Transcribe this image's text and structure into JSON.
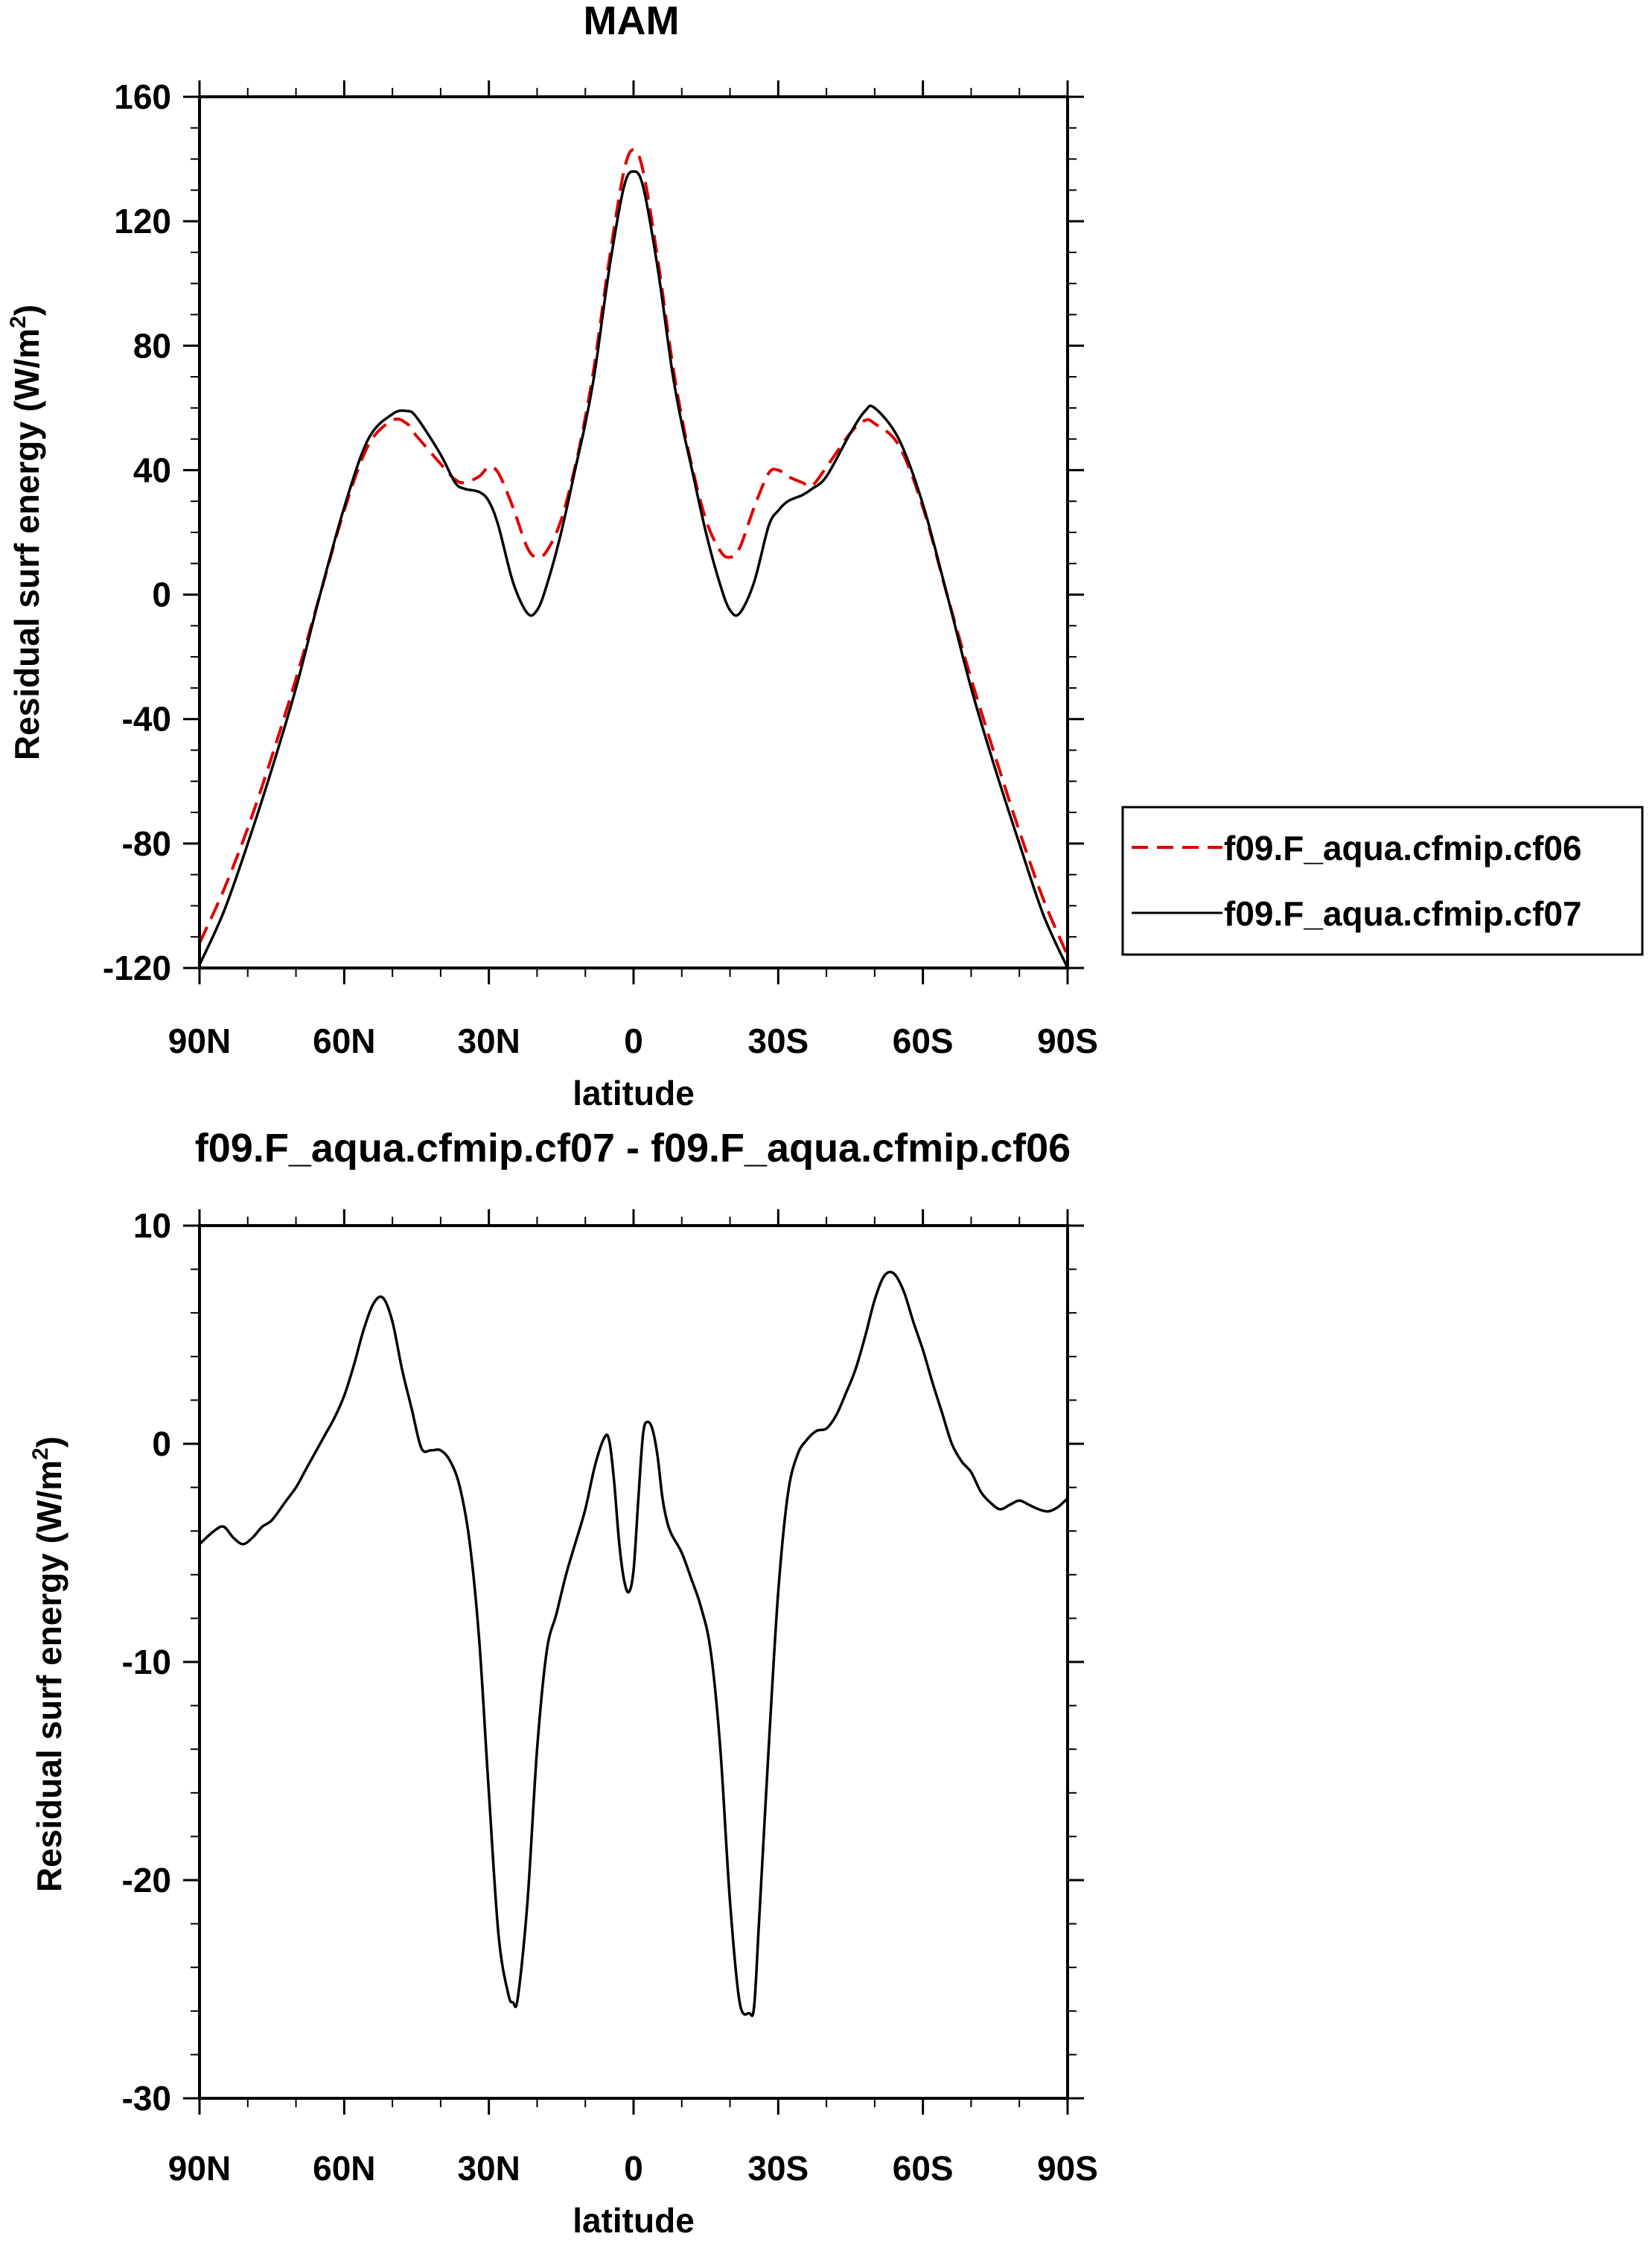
{
  "chart_data": [
    {
      "type": "line",
      "title": "MAM",
      "xlabel": "latitude",
      "ylabel_main": "Residual surf energy (W/m",
      "ylabel_sup": "2",
      "ylabel_close": ")",
      "xlim": [
        90,
        -90
      ],
      "ylim": [
        -120,
        160
      ],
      "x_ticks": [
        90,
        60,
        30,
        0,
        -30,
        -60,
        -90
      ],
      "x_tick_labels": [
        "90N",
        "60N",
        "30N",
        "0",
        "30S",
        "60S",
        "90S"
      ],
      "y_ticks": [
        -120,
        -80,
        -40,
        0,
        40,
        80,
        120,
        160
      ],
      "y_tick_labels": [
        "-120",
        "-80",
        "-40",
        "0",
        "40",
        "80",
        "120",
        "160"
      ],
      "legend_position": "right",
      "series": [
        {
          "name": "f09.F_aqua.cfmip.cf06",
          "color": "#e00000",
          "dash": "dashed",
          "x": [
            90,
            85,
            80,
            75,
            70,
            65,
            60,
            55,
            50,
            47,
            45,
            40,
            37,
            35,
            32,
            30,
            28,
            25,
            22,
            20,
            18,
            15,
            12,
            10,
            8,
            5,
            2,
            0,
            -2,
            -5,
            -8,
            -10,
            -12,
            -15,
            -18,
            -20,
            -22,
            -25,
            -28,
            -30,
            -32,
            -35,
            -37,
            -40,
            -45,
            -48,
            -50,
            -55,
            -60,
            -65,
            -70,
            -75,
            -80,
            -85,
            -90
          ],
          "y": [
            -112,
            -95,
            -75,
            -52,
            -27,
            0,
            27,
            48,
            56,
            55,
            51,
            42,
            37,
            36,
            38,
            41,
            39,
            28,
            15,
            12,
            14,
            24,
            42,
            57,
            75,
            108,
            136,
            143,
            136,
            108,
            75,
            57,
            42,
            24,
            14,
            12,
            15,
            28,
            39,
            40,
            38,
            36,
            35,
            41,
            52,
            56,
            55,
            48,
            28,
            0,
            -27,
            -52,
            -76,
            -98,
            -116
          ]
        },
        {
          "name": "f09.F_aqua.cfmip.cf07",
          "color": "#000000",
          "dash": "solid",
          "x": [
            90,
            85,
            80,
            75,
            70,
            65,
            60,
            55,
            50,
            47,
            45,
            40,
            37,
            35,
            32,
            30,
            28,
            25,
            22,
            20,
            18,
            15,
            12,
            10,
            8,
            5,
            2,
            0,
            -2,
            -5,
            -8,
            -10,
            -12,
            -15,
            -18,
            -20,
            -22,
            -25,
            -28,
            -30,
            -32,
            -35,
            -37,
            -40,
            -45,
            -48,
            -50,
            -55,
            -60,
            -65,
            -70,
            -75,
            -80,
            -85,
            -90
          ],
          "y": [
            -119,
            -102,
            -80,
            -56,
            -30,
            0,
            28,
            50,
            58,
            59,
            57,
            45,
            36,
            34,
            33,
            30,
            22,
            4,
            -6,
            -5,
            3,
            20,
            41,
            55,
            72,
            105,
            131,
            136,
            131,
            105,
            72,
            55,
            41,
            20,
            3,
            -5,
            -6,
            4,
            22,
            27,
            30,
            32,
            34,
            38,
            52,
            59,
            60,
            50,
            29,
            0,
            -30,
            -56,
            -80,
            -103,
            -120
          ]
        }
      ]
    },
    {
      "type": "line",
      "title": "f09.F_aqua.cfmip.cf07 - f09.F_aqua.cfmip.cf06",
      "xlabel": "latitude",
      "ylabel_main": "Residual surf energy (W/m",
      "ylabel_sup": "2",
      "ylabel_close": ")",
      "xlim": [
        90,
        -90
      ],
      "ylim": [
        -30,
        10
      ],
      "x_ticks": [
        90,
        60,
        30,
        0,
        -30,
        -60,
        -90
      ],
      "x_tick_labels": [
        "90N",
        "60N",
        "30N",
        "0",
        "30S",
        "60S",
        "90S"
      ],
      "y_ticks": [
        -30,
        -20,
        -10,
        0,
        10
      ],
      "y_tick_labels": [
        "-30",
        "-20",
        "-10",
        "0",
        "10"
      ],
      "series": [
        {
          "color": "#000000",
          "dash": "solid",
          "x": [
            90,
            87,
            85,
            83,
            81,
            79,
            77,
            75,
            72,
            70,
            68,
            66,
            64,
            62,
            60,
            58,
            56,
            54,
            52,
            50,
            48,
            46,
            44,
            42,
            40,
            38,
            36,
            34,
            32,
            30,
            28,
            26,
            25,
            24,
            22,
            20,
            18,
            16,
            14,
            12,
            10,
            8,
            6,
            5,
            4,
            3,
            2,
            1,
            0,
            -1,
            -2,
            -3,
            -4,
            -5,
            -6,
            -7,
            -8,
            -10,
            -12,
            -14,
            -16,
            -18,
            -20,
            -22,
            -24,
            -25,
            -26,
            -28,
            -30,
            -32,
            -34,
            -36,
            -38,
            -40,
            -42,
            -44,
            -46,
            -48,
            -50,
            -52,
            -54,
            -56,
            -58,
            -60,
            -62,
            -64,
            -66,
            -68,
            -70,
            -72,
            -74,
            -76,
            -78,
            -80,
            -82,
            -84,
            -86,
            -88,
            -90
          ],
          "y": [
            -4.6,
            -4.0,
            -3.8,
            -4.3,
            -4.6,
            -4.3,
            -3.8,
            -3.5,
            -2.6,
            -2.0,
            -1.2,
            -0.4,
            0.4,
            1.2,
            2.2,
            3.6,
            5.2,
            6.4,
            6.7,
            5.6,
            3.4,
            1.6,
            -0.2,
            -0.3,
            -0.3,
            -0.8,
            -2.0,
            -4.5,
            -9.0,
            -16.0,
            -22.5,
            -25.2,
            -25.6,
            -25.4,
            -21.0,
            -14.0,
            -9.5,
            -7.8,
            -6.0,
            -4.5,
            -3.0,
            -1.0,
            0.3,
            0.1,
            -1.8,
            -4.5,
            -6.2,
            -6.8,
            -5.8,
            -2.5,
            0.5,
            1.0,
            0.6,
            -0.6,
            -2.5,
            -3.6,
            -4.2,
            -5.0,
            -6.2,
            -7.5,
            -9.5,
            -14.0,
            -21.0,
            -25.6,
            -26.1,
            -25.8,
            -22.0,
            -14.0,
            -6.8,
            -2.3,
            -0.5,
            0.2,
            0.6,
            0.7,
            1.3,
            2.3,
            3.4,
            4.9,
            6.6,
            7.7,
            7.8,
            7.0,
            5.6,
            4.3,
            2.8,
            1.4,
            0.0,
            -0.8,
            -1.3,
            -2.2,
            -2.7,
            -3.0,
            -2.8,
            -2.6,
            -2.8,
            -3.0,
            -3.1,
            -2.9,
            -2.5
          ]
        }
      ]
    }
  ]
}
